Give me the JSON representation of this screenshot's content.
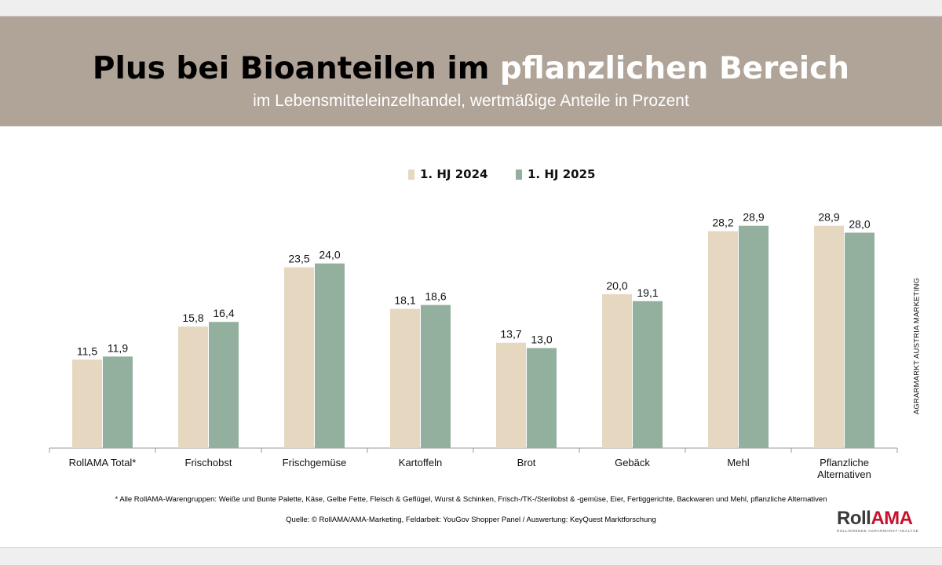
{
  "header": {
    "title_part1": "Plus bei Bioanteilen im ",
    "title_part2": "pflanzlichen Bereich",
    "subtitle": "im Lebensmitteleinzelhandel, wertmäßige Anteile in Prozent"
  },
  "colors": {
    "header_bg": "#b0a397",
    "series_2024": "#e6d8c0",
    "series_2025": "#93b09f"
  },
  "chart_data": {
    "type": "bar",
    "title": "Plus bei Bioanteilen im pflanzlichen Bereich",
    "subtitle": "im Lebensmitteleinzelhandel, wertmäßige Anteile in Prozent",
    "xlabel": "",
    "ylabel": "",
    "ylim": [
      0,
      30
    ],
    "grid": false,
    "legend": "top-center",
    "categories": [
      "RollAMA Total*",
      "Frischobst",
      "Frischgemüse",
      "Kartoffeln",
      "Brot",
      "Gebäck",
      "Mehl",
      "Pflanzliche Alternativen"
    ],
    "series": [
      {
        "name": "1. HJ 2024",
        "values": [
          11.5,
          15.8,
          23.5,
          18.1,
          13.7,
          20.0,
          28.2,
          28.9
        ],
        "labels": [
          "11,5",
          "15,8",
          "23,5",
          "18,1",
          "13,7",
          "20,0",
          "28,2",
          "28,9"
        ]
      },
      {
        "name": "1. HJ 2025",
        "values": [
          11.9,
          16.4,
          24.0,
          18.6,
          13.0,
          19.1,
          28.9,
          28.0
        ],
        "labels": [
          "11,9",
          "16,4",
          "24,0",
          "18,6",
          "13,0",
          "19,1",
          "28,9",
          "28,0"
        ]
      }
    ]
  },
  "footnote": "* Alle RollAMA-Warengruppen: Weiße und Bunte Palette, Käse, Gelbe Fette, Fleisch & Geflügel, Wurst & Schinken, Frisch-/TK-/Sterilobst & -gemüse, Eier, Fertiggerichte, Backwaren und Mehl, pflanzliche Alternativen",
  "source": "Quelle: © RollAMA/AMA-Marketing, Feldarbeit: YouGov Shopper Panel / Auswertung: KeyQuest Marktforschung",
  "side_label": "AGRARMARKT AUSTRIA MARKETING",
  "logo": {
    "part1": "Roll",
    "part2": "AMA",
    "tagline": "ROLLIERENDE AGRARMARKT-ANALYSE"
  }
}
